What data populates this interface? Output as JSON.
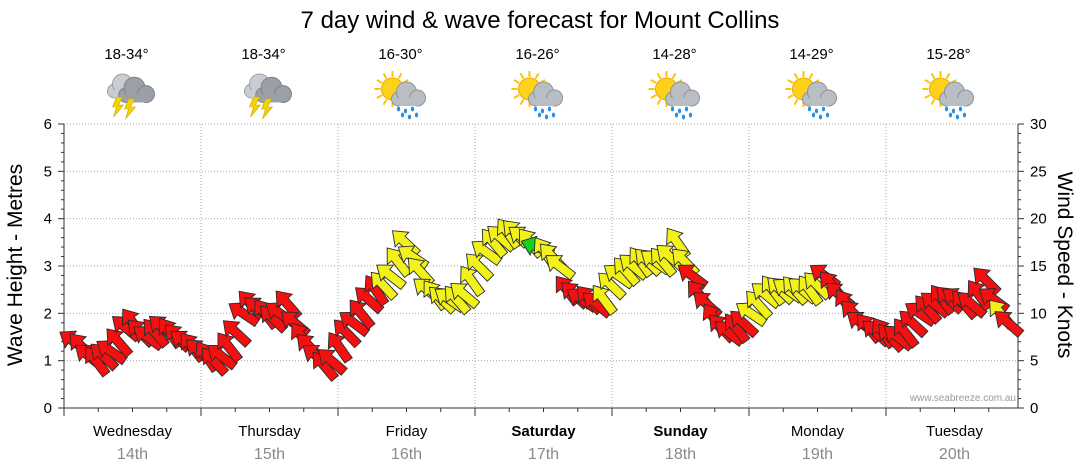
{
  "chart_data": {
    "type": "scatter",
    "title": "7 day wind & wave forecast for Mount Collins",
    "ylabel_left": "Wave Height - Metres",
    "ylabel_right": "Wind Speed - Knots",
    "ylim_left": [
      0,
      6
    ],
    "ylim_right": [
      0,
      30
    ],
    "yticks_left": [
      "0",
      "1",
      "2",
      "3",
      "4",
      "5",
      "6"
    ],
    "yticks_right": [
      "0",
      "5",
      "10",
      "15",
      "20",
      "25",
      "30"
    ],
    "grid": true,
    "days": [
      {
        "name": "Wednesday",
        "date": "14th",
        "weekend": false,
        "temp": "18-34°",
        "icon": "storm-icon"
      },
      {
        "name": "Thursday",
        "date": "15th",
        "weekend": false,
        "temp": "18-34°",
        "icon": "storm-icon"
      },
      {
        "name": "Friday",
        "date": "16th",
        "weekend": false,
        "temp": "16-30°",
        "icon": "sun-showers-icon"
      },
      {
        "name": "Saturday",
        "date": "17th",
        "weekend": true,
        "temp": "16-26°",
        "icon": "sun-showers-icon"
      },
      {
        "name": "Sunday",
        "date": "18th",
        "weekend": true,
        "temp": "14-28°",
        "icon": "sun-showers-icon"
      },
      {
        "name": "Monday",
        "date": "19th",
        "weekend": false,
        "temp": "14-29°",
        "icon": "sun-showers-icon"
      },
      {
        "name": "Tuesday",
        "date": "20th",
        "weekend": false,
        "temp": "15-28°",
        "icon": "sun-showers-icon"
      }
    ],
    "wind_knots": [
      7,
      6.5,
      5.5,
      5,
      5.5,
      6,
      7,
      8.5,
      9,
      8,
      7.5,
      8,
      8.5,
      8,
      7.5,
      7,
      6.5,
      6,
      5.5,
      5,
      5.5,
      6.5,
      8,
      10,
      11,
      10.5,
      10,
      9.5,
      10,
      11,
      9,
      7.5,
      6.5,
      5.5,
      4.5,
      5,
      6.5,
      8,
      9,
      10,
      11.5,
      12.5,
      13,
      14,
      15.5,
      17.5,
      16,
      14.5,
      12.5,
      12,
      11.5,
      11.5,
      11.5,
      12,
      13.5,
      15,
      16.5,
      17.5,
      18,
      18.5,
      18.5,
      18,
      17.5,
      17,
      16.5,
      16,
      15,
      12.5,
      12,
      11.5,
      11.5,
      11,
      11.5,
      13,
      14,
      14.5,
      15,
      15.5,
      15.5,
      15.5,
      15.5,
      16,
      17.5,
      15.5,
      14,
      12,
      11,
      9.5,
      8.5,
      8,
      8.5,
      9,
      10,
      11,
      12,
      12.5,
      12.5,
      12.5,
      12.5,
      12.5,
      12.5,
      13,
      14,
      13,
      12,
      11,
      10,
      9,
      8.5,
      8,
      8,
      7.5,
      7.5,
      8,
      9,
      10,
      10.5,
      11,
      11.5,
      11.5,
      11.5,
      11,
      11,
      12,
      13.5,
      11.5,
      10,
      9
    ],
    "wind_colors": [
      "red",
      "red",
      "red",
      "red",
      "red",
      "red",
      "red",
      "red",
      "red",
      "red",
      "red",
      "red",
      "red",
      "red",
      "red",
      "red",
      "red",
      "red",
      "red",
      "red",
      "red",
      "red",
      "red",
      "red",
      "red",
      "red",
      "red",
      "red",
      "red",
      "red",
      "red",
      "red",
      "red",
      "red",
      "red",
      "red",
      "red",
      "red",
      "red",
      "red",
      "red",
      "red",
      "yellow",
      "yellow",
      "yellow",
      "yellow",
      "yellow",
      "yellow",
      "yellow",
      "yellow",
      "yellow",
      "yellow",
      "yellow",
      "yellow",
      "yellow",
      "yellow",
      "yellow",
      "yellow",
      "yellow",
      "yellow",
      "yellow",
      "yellow",
      "yellow",
      "green",
      "yellow",
      "yellow",
      "yellow",
      "red",
      "red",
      "red",
      "red",
      "red",
      "yellow",
      "yellow",
      "yellow",
      "yellow",
      "yellow",
      "yellow",
      "yellow",
      "yellow",
      "yellow",
      "yellow",
      "yellow",
      "yellow",
      "red",
      "red",
      "red",
      "red",
      "red",
      "red",
      "red",
      "red",
      "yellow",
      "yellow",
      "yellow",
      "yellow",
      "yellow",
      "yellow",
      "yellow",
      "yellow",
      "yellow",
      "yellow",
      "red",
      "red",
      "red",
      "red",
      "red",
      "red",
      "red",
      "red",
      "red",
      "red",
      "red",
      "red",
      "red",
      "red",
      "red",
      "red",
      "red",
      "red",
      "red",
      "red",
      "red",
      "red",
      "red",
      "red",
      "yellow",
      "red",
      "red"
    ],
    "wind_direction": "north-west to south-east",
    "colors": {
      "red": "#f41010",
      "yellow": "#f2f21a",
      "green": "#16d116"
    }
  },
  "watermark": "www.seabreeze.com.au"
}
